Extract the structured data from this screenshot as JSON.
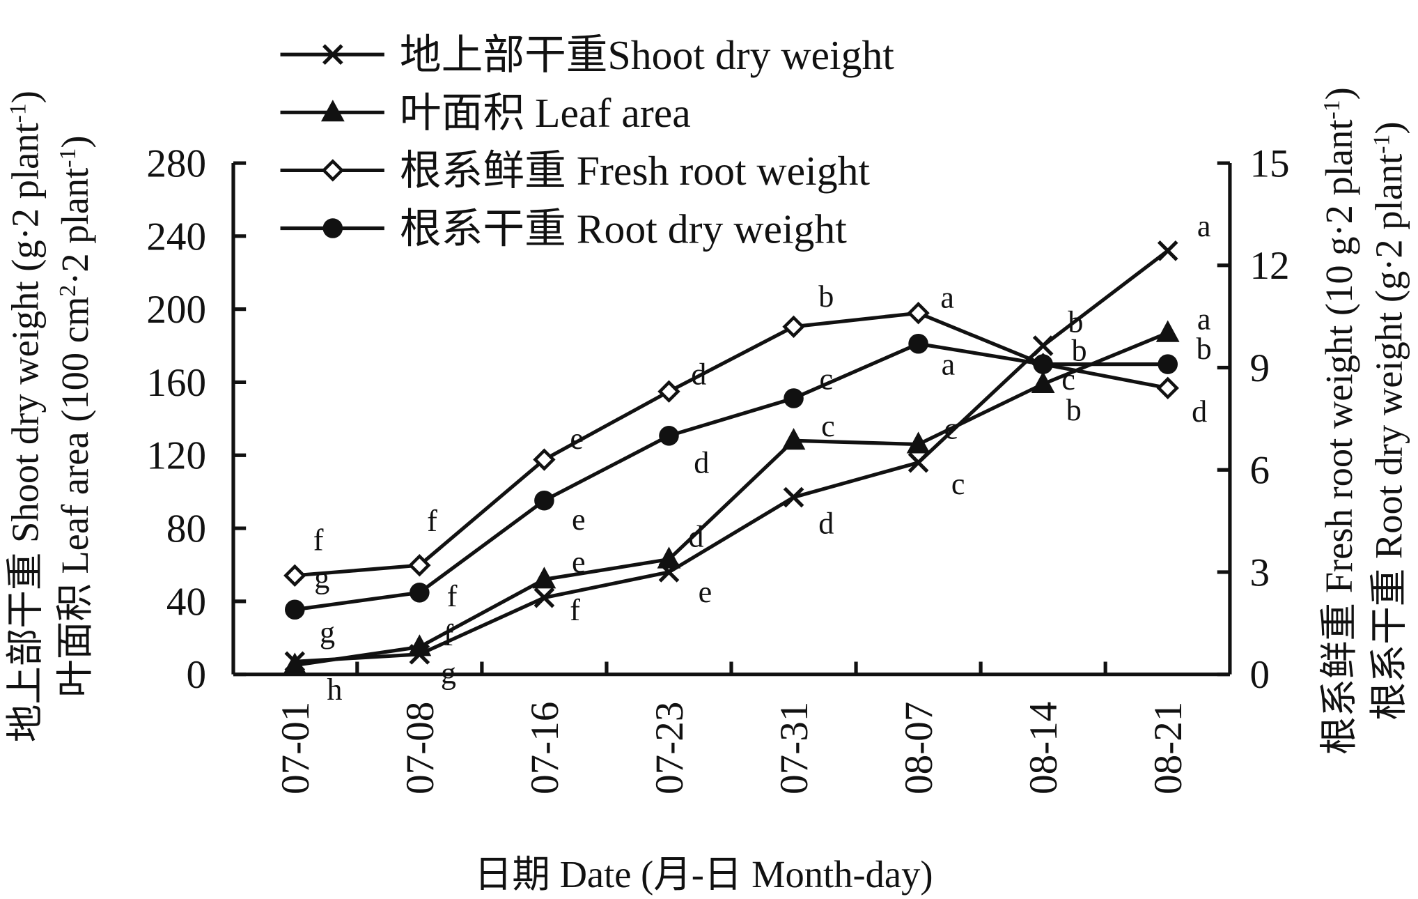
{
  "chart_data": {
    "type": "line",
    "x_title": "日期 Date (月-日 Month-day)",
    "categories": [
      "07-01",
      "07-08",
      "07-16",
      "07-23",
      "07-31",
      "08-07",
      "08-14",
      "08-21"
    ],
    "y_left": {
      "title_lines": [
        {
          "text": "地上部干重 Shoot dry weight (g·2 plant",
          "sup": "-1",
          "tail": ")"
        },
        {
          "text": "叶面积 Leaf area (100 cm",
          "sup": "2",
          "mid": "·2 plant",
          "sup2": "-1",
          "tail": ")"
        }
      ],
      "range": [
        0,
        280
      ],
      "ticks": [
        0,
        40,
        80,
        120,
        160,
        200,
        240,
        280
      ]
    },
    "y_right": {
      "title_lines": [
        {
          "text": "根系鲜重 Fresh root weight (10 g·2 plant",
          "sup": "-1",
          "tail": ")"
        },
        {
          "text": "根系干重 Root dry weight (g·2 plant",
          "sup": "-1",
          "tail": ")"
        }
      ],
      "range": [
        0,
        15
      ],
      "ticks": [
        0,
        3,
        6,
        9,
        12,
        15
      ]
    },
    "series": [
      {
        "name": "地上部干重Shoot dry weight",
        "marker": "x-mark",
        "axis": "left",
        "values": [
          7,
          11,
          42,
          56,
          97,
          116,
          180,
          232
        ],
        "letters": [
          "h",
          "g",
          "f",
          "e",
          "d",
          "c",
          "b",
          "a"
        ]
      },
      {
        "name": "叶面积 Leaf area",
        "marker": "filled-triangle",
        "axis": "left",
        "values": [
          5,
          15,
          52,
          63,
          128,
          126,
          159,
          187
        ],
        "letters": [
          "g",
          "f",
          "e",
          "d",
          "c",
          "c",
          "c",
          "a"
        ]
      },
      {
        "name": "根系鲜重 Fresh root weight",
        "marker": "open-diamond",
        "axis": "right",
        "values": [
          2.9,
          3.2,
          6.3,
          8.3,
          10.2,
          10.6,
          9.1,
          8.4
        ],
        "letters": [
          "f",
          "f",
          "e",
          "d",
          "b",
          "a",
          "b",
          "d"
        ]
      },
      {
        "name": "根系干重 Root dry weight",
        "marker": "filled-circle",
        "axis": "right",
        "values": [
          1.9,
          2.4,
          5.1,
          7.0,
          8.1,
          9.7,
          9.1,
          9.1
        ],
        "letters": [
          "g",
          "f",
          "e",
          "d",
          "c",
          "a",
          "b",
          "b"
        ]
      }
    ],
    "legend_placement": "top-left",
    "grid": false,
    "colors": {
      "line": "#111111"
    }
  }
}
